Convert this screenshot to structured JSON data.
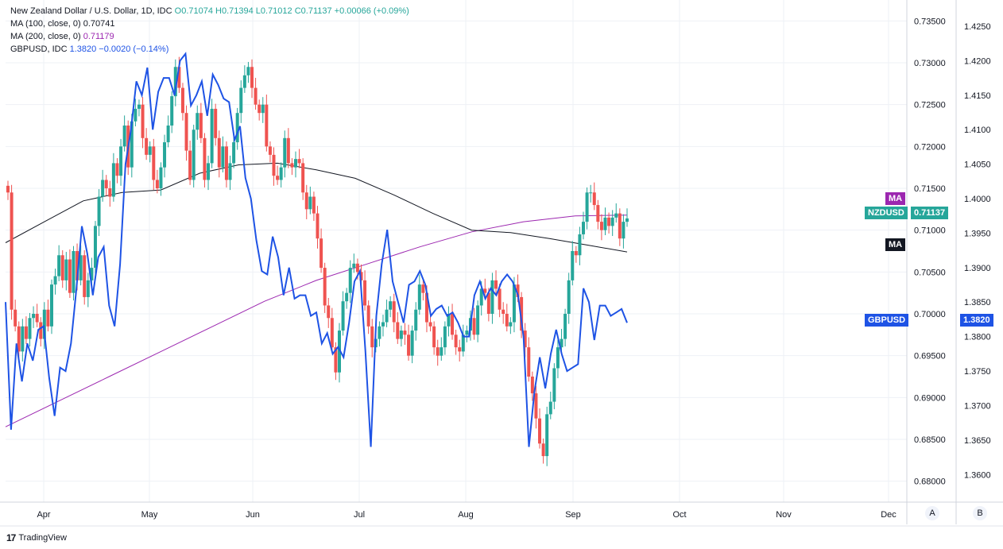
{
  "legend": {
    "symbol_title": "New Zealand Dollar / U.S. Dollar, 1D, IDC",
    "ohlc": "O0.71074 H0.71394 L0.71012 C0.71137 +0.00066 (+0.09%)",
    "ma100_label": "MA (100, close, 0)",
    "ma100_value": "0.70741",
    "ma200_label": "MA (200, close, 0)",
    "ma200_value": "0.71179",
    "gbpusd_label": "GBPUSD, IDC",
    "gbpusd_value": "1.3820",
    "gbpusd_change": "−0.0020 (−0.14%)"
  },
  "badges": {
    "ma_purple": "MA",
    "nzdusd_name": "NZDUSD",
    "nzdusd_price": "0.71137",
    "ma_black": "MA",
    "gbpusd_name": "GBPUSD",
    "gbpusd_price": "1.3820"
  },
  "scale_buttons": {
    "left": "A",
    "right": "B"
  },
  "brand": {
    "name": "TradingView"
  },
  "colors": {
    "up": "#26a69a",
    "down": "#ef5350",
    "gbpusd": "#1e53e5",
    "ma100": "#131722",
    "ma200": "#9c27b0",
    "grid": "#eef1f6"
  },
  "chart_data": [
    {
      "type": "candlestick",
      "title": "New Zealand Dollar / U.S. Dollar, 1D, IDC",
      "x_ticks": [
        "Apr",
        "May",
        "Jun",
        "Jul",
        "Aug",
        "Sep",
        "Oct",
        "Nov",
        "Dec"
      ],
      "y_ticks": [
        "0.73500",
        "0.73000",
        "0.72500",
        "0.72000",
        "0.71500",
        "0.71000",
        "0.70500",
        "0.70000",
        "0.69500",
        "0.69000",
        "0.68500",
        "0.68000"
      ],
      "ylim": [
        0.6775,
        0.7375
      ],
      "grid": true,
      "candle_closes": [
        0.7145,
        0.7005,
        0.6985,
        0.6955,
        0.6985,
        0.697,
        0.6995,
        0.7,
        0.699,
        0.697,
        0.7005,
        0.6985,
        0.7035,
        0.7045,
        0.707,
        0.704,
        0.7065,
        0.7025,
        0.7075,
        0.704,
        0.707,
        0.702,
        0.704,
        0.7055,
        0.7105,
        0.714,
        0.716,
        0.715,
        0.714,
        0.718,
        0.7165,
        0.72,
        0.7225,
        0.7175,
        0.723,
        0.7245,
        0.725,
        0.721,
        0.719,
        0.72,
        0.716,
        0.715,
        0.7175,
        0.7205,
        0.7225,
        0.726,
        0.7295,
        0.727,
        0.724,
        0.7195,
        0.716,
        0.722,
        0.724,
        0.721,
        0.716,
        0.718,
        0.7245,
        0.721,
        0.7175,
        0.72,
        0.716,
        0.718,
        0.7205,
        0.724,
        0.727,
        0.7285,
        0.7295,
        0.727,
        0.725,
        0.724,
        0.725,
        0.72,
        0.719,
        0.7165,
        0.716,
        0.7175,
        0.721,
        0.718,
        0.7175,
        0.7185,
        0.718,
        0.7145,
        0.7125,
        0.714,
        0.712,
        0.709,
        0.7055,
        0.701,
        0.6995,
        0.696,
        0.693,
        0.698,
        0.7015,
        0.7025,
        0.7055,
        0.706,
        0.705,
        0.704,
        0.701,
        0.6985,
        0.696,
        0.697,
        0.6985,
        0.699,
        0.7005,
        0.7015,
        0.699,
        0.697,
        0.698,
        0.6975,
        0.695,
        0.698,
        0.7005,
        0.7035,
        0.7025,
        0.699,
        0.6985,
        0.696,
        0.695,
        0.696,
        0.6985,
        0.7,
        0.6975,
        0.696,
        0.6955,
        0.6975,
        0.698,
        0.6995,
        0.6975,
        0.701,
        0.703,
        0.7025,
        0.7,
        0.704,
        0.703,
        0.7005,
        0.7,
        0.6985,
        0.699,
        0.7035,
        0.702,
        0.698,
        0.696,
        0.6925,
        0.6905,
        0.6875,
        0.6845,
        0.683,
        0.688,
        0.6895,
        0.6935,
        0.696,
        0.697,
        0.7,
        0.704,
        0.7075,
        0.707,
        0.7095,
        0.711,
        0.7145,
        0.7145,
        0.713,
        0.711,
        0.71,
        0.7115,
        0.7105,
        0.7115,
        0.712,
        0.709,
        0.711,
        0.7114
      ],
      "series": [
        {
          "name": "MA (100, close, 0)",
          "values": [
            0.7085,
            0.711,
            0.7135,
            0.7145,
            0.7148,
            0.7168,
            0.7178,
            0.718,
            0.7172,
            0.7162,
            0.7142,
            0.712,
            0.71,
            0.7097,
            0.709,
            0.7082,
            0.7074
          ]
        },
        {
          "name": "MA (200, close, 0)",
          "values": [
            0.6865,
            0.6895,
            0.6925,
            0.6955,
            0.6985,
            0.7015,
            0.704,
            0.706,
            0.708,
            0.7098,
            0.711,
            0.7117,
            0.7118
          ]
        }
      ]
    },
    {
      "type": "line",
      "title": "GBPUSD, IDC",
      "y_ticks": [
        "1.4250",
        "1.4200",
        "1.4150",
        "1.4100",
        "1.4050",
        "1.4000",
        "1.3950",
        "1.3900",
        "1.3850",
        "1.3800",
        "1.3750",
        "1.3700",
        "1.3650",
        "1.3600"
      ],
      "ylim": [
        1.356,
        1.4288
      ],
      "series": [
        {
          "name": "GBPUSD",
          "values": [
            1.385,
            1.3665,
            1.379,
            1.3735,
            1.379,
            1.3765,
            1.381,
            1.3815,
            1.374,
            1.3685,
            1.3755,
            1.375,
            1.379,
            1.387,
            1.396,
            1.392,
            1.386,
            1.3915,
            1.393,
            1.3845,
            1.3815,
            1.3905,
            1.405,
            1.41,
            1.417,
            1.415,
            1.419,
            1.41,
            1.4155,
            1.4175,
            1.4175,
            1.415,
            1.42,
            1.421,
            1.4135,
            1.415,
            1.417,
            1.412,
            1.418,
            1.4165,
            1.4145,
            1.414,
            1.4085,
            1.4105,
            1.403,
            1.4,
            1.394,
            1.3895,
            1.389,
            1.3945,
            1.3915,
            1.386,
            1.39,
            1.3855,
            1.386,
            1.386,
            1.383,
            1.3835,
            1.379,
            1.3805,
            1.3775,
            1.3785,
            1.377,
            1.382,
            1.388,
            1.3895,
            1.378,
            1.364,
            1.383,
            1.3905,
            1.3955,
            1.388,
            1.385,
            1.382,
            1.3875,
            1.388,
            1.3895,
            1.3875,
            1.383,
            1.384,
            1.3845,
            1.383,
            1.3835,
            1.382,
            1.38,
            1.38,
            1.386,
            1.388,
            1.3855,
            1.387,
            1.386,
            1.388,
            1.389,
            1.388,
            1.386,
            1.38,
            1.364,
            1.372,
            1.377,
            1.3725,
            1.3775,
            1.381,
            1.3775,
            1.375,
            1.3755,
            1.376,
            1.387,
            1.385,
            1.3795,
            1.3845,
            1.3845,
            1.383,
            1.3835,
            1.384,
            1.382
          ]
        }
      ]
    }
  ]
}
